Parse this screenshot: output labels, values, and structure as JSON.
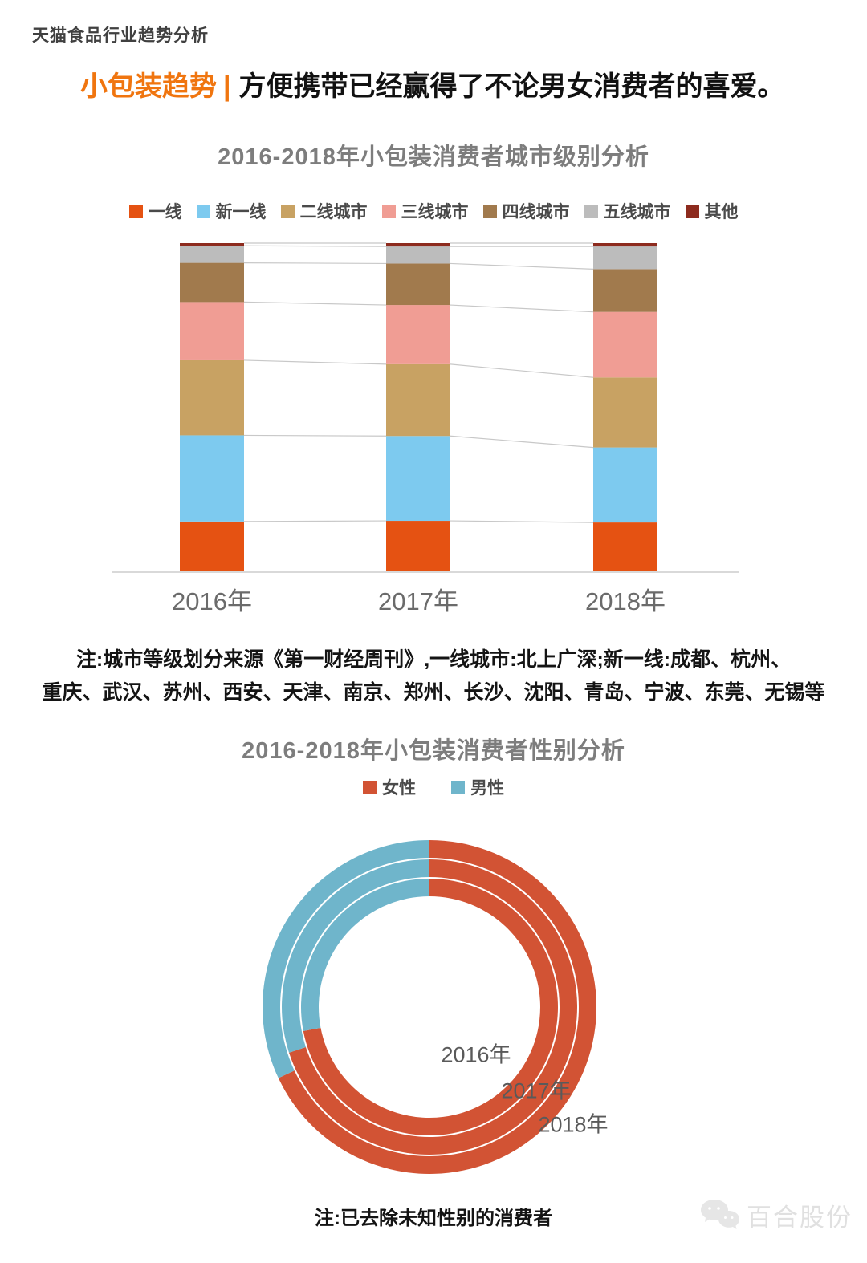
{
  "page": {
    "header": "天猫食品行业趋势分析"
  },
  "headline": {
    "highlight": "小包装趋势",
    "separator": "|",
    "text": "方便携带已经赢得了不论男女消费者的喜爱。"
  },
  "chart_data": [
    {
      "type": "bar",
      "stacked": true,
      "title": "2016-2018年小包装消费者城市级别分析",
      "categories": [
        "2016年",
        "2017年",
        "2018年"
      ],
      "value_unit": "percent share of consumers",
      "ylim": [
        0,
        100
      ],
      "grid": false,
      "legend_position": "top",
      "series": [
        {
          "name": "一线",
          "color": "#E55212",
          "values": [
            15.4,
            15.6,
            15.1
          ]
        },
        {
          "name": "新一线",
          "color": "#7DCAEF",
          "values": [
            26.2,
            25.8,
            22.8
          ]
        },
        {
          "name": "二线城市",
          "color": "#C8A263",
          "values": [
            22.8,
            21.8,
            21.3
          ]
        },
        {
          "name": "三线城市",
          "color": "#F09D94",
          "values": [
            17.7,
            18.0,
            19.9
          ]
        },
        {
          "name": "四线城市",
          "color": "#A17A4D",
          "values": [
            11.9,
            12.6,
            13.0
          ]
        },
        {
          "name": "五线城市",
          "color": "#BCBCBC",
          "values": [
            5.2,
            5.2,
            6.9
          ]
        },
        {
          "name": "其他",
          "color": "#8D2B1E",
          "values": [
            0.8,
            1.0,
            1.0
          ]
        }
      ],
      "note_lines": [
        "注:城市等级划分来源《第一财经周刊》,一线城市:北上广深;新一线:成都、杭州、",
        "重庆、武汉、苏州、西安、天津、南京、郑州、长沙、沈阳、青岛、宁波、东莞、无锡等"
      ]
    },
    {
      "type": "pie",
      "variant": "multi-ring-donut",
      "title": "2016-2018年小包装消费者性别分析",
      "start": "top",
      "female_direction": "clockwise",
      "legend": [
        {
          "name": "女性",
          "color": "#D25334"
        },
        {
          "name": "男性",
          "color": "#6FB5CB"
        }
      ],
      "rings": [
        {
          "label": "2016年",
          "female": 72,
          "male": 28
        },
        {
          "label": "2017年",
          "female": 70,
          "male": 30
        },
        {
          "label": "2018年",
          "female": 68,
          "male": 32
        }
      ],
      "note": "注:已去除未知性别的消费者"
    }
  ],
  "watermark": {
    "text": "百合股份",
    "icon": "wechat-chat-bubbles-icon"
  }
}
